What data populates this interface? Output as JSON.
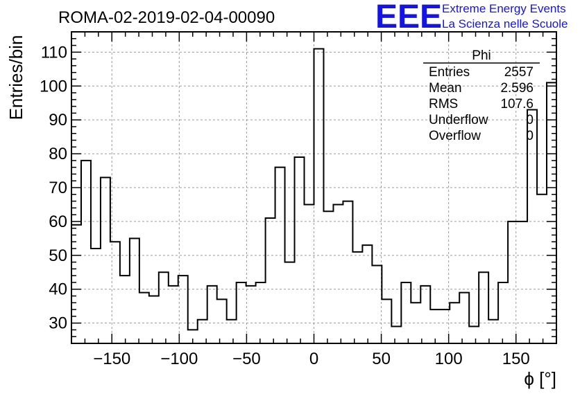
{
  "title": "ROMA-02-2019-02-04-00090",
  "logo": {
    "letters": "EEE",
    "line1": "Extreme Energy Events",
    "line2": "La Scienza nelle Scuole",
    "color": "#1414e6"
  },
  "stats_box": {
    "name": "Phi",
    "rows": [
      {
        "label": "Entries",
        "value": "2557"
      },
      {
        "label": "Mean",
        "value": "2.596"
      },
      {
        "label": "RMS",
        "value": "107.6"
      },
      {
        "label": "Underflow",
        "value": "0"
      },
      {
        "label": "Overflow",
        "value": "0"
      }
    ]
  },
  "chart_data": {
    "type": "bar",
    "histogram_style": "step",
    "title": "ROMA-02-2019-02-04-00090",
    "xlabel": "ϕ [°]",
    "ylabel": "Entries/bin",
    "xlim": [
      -180,
      180
    ],
    "ylim": [
      24,
      116
    ],
    "grid": true,
    "xticks": [
      -150,
      -100,
      -50,
      0,
      50,
      100,
      150
    ],
    "yticks": [
      30,
      40,
      50,
      60,
      70,
      80,
      90,
      100,
      110
    ],
    "bin_edges": [
      -180,
      -172.8,
      -165.6,
      -158.4,
      -151.2,
      -144,
      -136.8,
      -129.6,
      -122.4,
      -115.2,
      -108,
      -100.8,
      -93.6,
      -86.4,
      -79.2,
      -72,
      -64.8,
      -57.6,
      -50.4,
      -43.2,
      -36,
      -28.8,
      -21.6,
      -14.4,
      -7.2,
      0,
      7.2,
      14.4,
      21.6,
      28.8,
      36,
      43.2,
      50.4,
      57.6,
      64.8,
      72,
      79.2,
      86.4,
      93.6,
      100.8,
      108,
      115.2,
      122.4,
      129.6,
      136.8,
      144,
      151.2,
      158.4,
      165.6,
      172.8,
      180
    ],
    "values": [
      59,
      78,
      52,
      73,
      54,
      44,
      55,
      39,
      38,
      45,
      41,
      44,
      28,
      31,
      41,
      37,
      31,
      42,
      41,
      42,
      61,
      76,
      48,
      79,
      65,
      111,
      63,
      65,
      66,
      51,
      53,
      47,
      37,
      29,
      42,
      36,
      41,
      34,
      34,
      36,
      39,
      29,
      45,
      31,
      42,
      60,
      60,
      93,
      68,
      101
    ]
  }
}
